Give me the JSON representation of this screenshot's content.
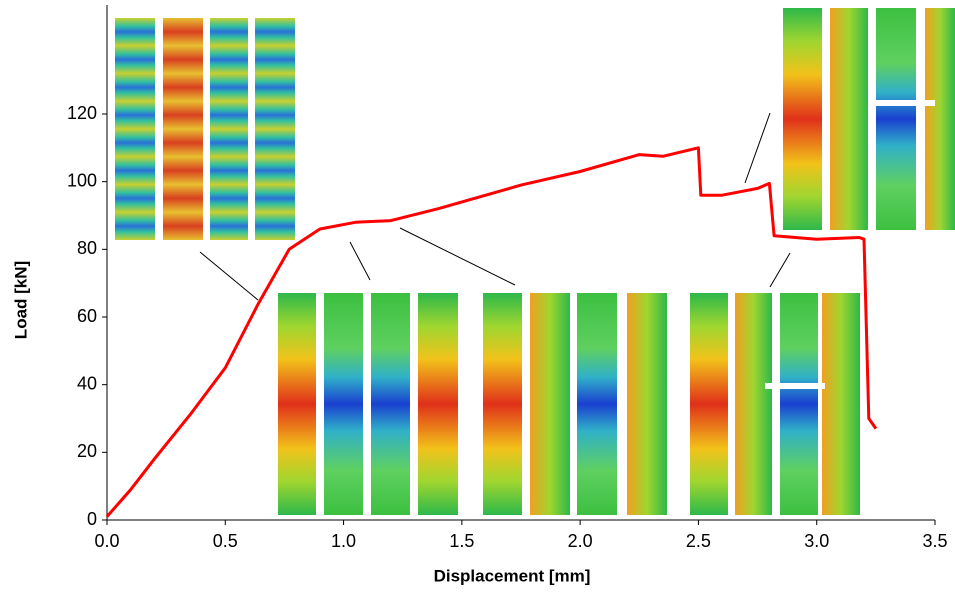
{
  "chart_data": {
    "type": "line",
    "x_label": "Displacement [mm]",
    "y_label": "Load [kN]",
    "x": [
      0,
      0.1,
      0.2,
      0.35,
      0.5,
      0.64,
      0.77,
      0.9,
      1.05,
      1.2,
      1.4,
      1.75,
      2.0,
      2.25,
      2.35,
      2.5,
      2.51,
      2.6,
      2.75,
      2.8,
      2.82,
      3.0,
      3.18,
      3.2,
      3.22,
      3.25
    ],
    "values": [
      1,
      9,
      18,
      31,
      45,
      64,
      80,
      86,
      88,
      88.5,
      92,
      99,
      103,
      108,
      107.5,
      110,
      96,
      96,
      98,
      99.5,
      84,
      83,
      83.5,
      83,
      30,
      27
    ],
    "color": "#ff0000",
    "xlim": [
      0,
      3.5
    ],
    "ylim": [
      0,
      150
    ],
    "xticks": [
      {
        "value": 0,
        "label": "0.0"
      },
      {
        "value": 0.5,
        "label": "0.5"
      },
      {
        "value": 1,
        "label": "1.0"
      },
      {
        "value": 1.5,
        "label": "1.5"
      },
      {
        "value": 2,
        "label": "2.0"
      },
      {
        "value": 2.5,
        "label": "2.5"
      },
      {
        "value": 3,
        "label": "3.0"
      },
      {
        "value": 3.5,
        "label": "3.5"
      }
    ],
    "yticks": [
      0,
      20,
      40,
      60,
      80,
      100,
      120
    ]
  }
}
